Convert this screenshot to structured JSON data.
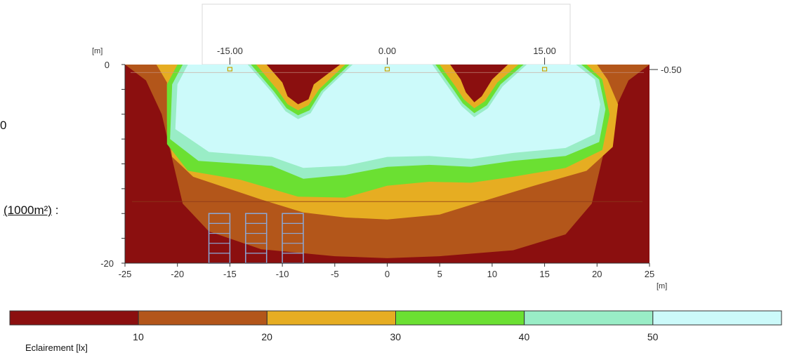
{
  "side_text": {
    "zero_fragment": "0",
    "area_fragment": "(1000m²)",
    "area_colon": " :"
  },
  "colors": {
    "band_0_10": "#8b0f0f",
    "band_10_20": "#b3561a",
    "band_20_30": "#e6ad22",
    "band_30_40": "#6be032",
    "band_40_50": "#99edc6",
    "band_50_plus": "#ccfafa",
    "fixture": "#c8a400",
    "rack": "#8aa8d8",
    "axis": "#333333"
  },
  "chart_data": {
    "type": "heatmap",
    "subtype": "isolux contour plot",
    "xlim": [
      -25,
      25
    ],
    "ylim": [
      -20,
      0
    ],
    "x_ticks": [
      "-25",
      "-20",
      "-15",
      "-10",
      "-5",
      "0",
      "5",
      "10",
      "15",
      "20",
      "25"
    ],
    "x_unit": "[m]",
    "y_unit": "[m]",
    "y_tick_labels": [
      "0",
      "-20"
    ],
    "top_ticks": [
      "-15.00",
      "0.00",
      "15.00"
    ],
    "top_tick_positions": [
      -15,
      0,
      15
    ],
    "right_label": "-0.50",
    "fixtures_x": [
      -15,
      0,
      15
    ],
    "fixture_row_y": -0.5,
    "racks_x": [
      -16,
      -12.5,
      -9
    ],
    "legend": {
      "title": "Eclairement [lx]",
      "thresholds": [
        "10",
        "20",
        "30",
        "40",
        "50"
      ],
      "bands": [
        {
          "from": 0,
          "to": 10
        },
        {
          "from": 10,
          "to": 20
        },
        {
          "from": 20,
          "to": 30
        },
        {
          "from": 30,
          "to": 40
        },
        {
          "from": 40,
          "to": 50
        },
        {
          "from": 50,
          "to": null
        }
      ]
    },
    "contour_levels": [
      {
        "level": 10,
        "outline": [
          [
            -25,
            -0.0
          ],
          [
            -23,
            -1.6
          ],
          [
            -21.5,
            -5
          ],
          [
            -20.5,
            -9.5
          ],
          [
            -19.5,
            -14
          ],
          [
            -17,
            -16.8
          ],
          [
            -12,
            -18.6
          ],
          [
            -5,
            -19.3
          ],
          [
            0,
            -19.5
          ],
          [
            5,
            -19.3
          ],
          [
            12,
            -18.7
          ],
          [
            17,
            -17.1
          ],
          [
            19.5,
            -14
          ],
          [
            20.5,
            -9.5
          ],
          [
            21.5,
            -5
          ],
          [
            23,
            -1.6
          ],
          [
            25,
            -0.0
          ]
        ]
      },
      {
        "level": 20,
        "outline": [
          [
            -22,
            0
          ],
          [
            -21,
            -1.8
          ],
          [
            -21,
            -6
          ],
          [
            -20.5,
            -9.3
          ],
          [
            -18.5,
            -11.3
          ],
          [
            -12,
            -13.6
          ],
          [
            -8,
            -14.9
          ],
          [
            -4,
            -15.4
          ],
          [
            0,
            -15.6
          ],
          [
            5,
            -15.1
          ],
          [
            9,
            -13.8
          ],
          [
            14,
            -12.2
          ],
          [
            19,
            -10.7
          ],
          [
            21.5,
            -8.3
          ],
          [
            22,
            -4
          ],
          [
            21,
            -1.5
          ],
          [
            20,
            0
          ]
        ]
      },
      {
        "level": 30,
        "outline": [
          [
            -20,
            0
          ],
          [
            -21,
            -2
          ],
          [
            -21,
            -8
          ],
          [
            -19,
            -10.7
          ],
          [
            -14,
            -11.6
          ],
          [
            -8.5,
            -13.3
          ],
          [
            -4,
            -13.4
          ],
          [
            0,
            -12.2
          ],
          [
            4,
            -11.8
          ],
          [
            8,
            -11.9
          ],
          [
            12,
            -11.3
          ],
          [
            17,
            -10.4
          ],
          [
            20.5,
            -8.6
          ],
          [
            21.2,
            -5
          ],
          [
            20.5,
            -1.5
          ],
          [
            19,
            0
          ]
        ]
      },
      {
        "level": 40,
        "outline": [
          [
            -19.5,
            0
          ],
          [
            -20.5,
            -2
          ],
          [
            -20.7,
            -7.5
          ],
          [
            -18,
            -9.7
          ],
          [
            -11,
            -10.2
          ],
          [
            -8,
            -11.5
          ],
          [
            -4,
            -11.1
          ],
          [
            0,
            -10.3
          ],
          [
            4,
            -10.1
          ],
          [
            8,
            -10.3
          ],
          [
            12,
            -9.7
          ],
          [
            17,
            -9.2
          ],
          [
            20.2,
            -7.8
          ],
          [
            20.8,
            -4.5
          ],
          [
            20.2,
            -1.5
          ],
          [
            18.5,
            0
          ]
        ]
      },
      {
        "level": 50,
        "outline": [
          [
            -19,
            0
          ],
          [
            -20,
            -2
          ],
          [
            -20.2,
            -6.5
          ],
          [
            -17,
            -8.8
          ],
          [
            -11,
            -9.3
          ],
          [
            -8,
            -10.4
          ],
          [
            -4,
            -10.2
          ],
          [
            0,
            -9.3
          ],
          [
            4,
            -9.2
          ],
          [
            8,
            -9.5
          ],
          [
            12,
            -8.9
          ],
          [
            17,
            -8.4
          ],
          [
            19.8,
            -7
          ],
          [
            20.3,
            -4
          ],
          [
            19.8,
            -1.5
          ],
          [
            18,
            0
          ]
        ]
      }
    ],
    "dark_notches": [
      {
        "level": 10,
        "outline": [
          [
            -11.5,
            0
          ],
          [
            -10,
            -1.8
          ],
          [
            -9.5,
            -3.2
          ],
          [
            -8.5,
            -4
          ],
          [
            -7.5,
            -3.5
          ],
          [
            -7,
            -2
          ],
          [
            -4.5,
            0
          ]
        ]
      },
      {
        "level": 10,
        "outline": [
          [
            6,
            0
          ],
          [
            7,
            -1.5
          ],
          [
            7.5,
            -2.8
          ],
          [
            8.3,
            -3.8
          ],
          [
            9,
            -3.2
          ],
          [
            10,
            -1.5
          ],
          [
            11.5,
            0
          ]
        ]
      }
    ],
    "notch_bands": [
      {
        "level": 20,
        "outline": [
          [
            -12.5,
            0
          ],
          [
            -10.5,
            -2.5
          ],
          [
            -9.5,
            -4
          ],
          [
            -8.5,
            -4.6
          ],
          [
            -7.5,
            -4.1
          ],
          [
            -6.5,
            -2.5
          ],
          [
            -4,
            0
          ]
        ]
      },
      {
        "level": 30,
        "outline": [
          [
            -13,
            0
          ],
          [
            -10.8,
            -2.7
          ],
          [
            -9.6,
            -4.4
          ],
          [
            -8.5,
            -5.1
          ],
          [
            -7.4,
            -4.6
          ],
          [
            -6.3,
            -2.7
          ],
          [
            -3.6,
            0
          ]
        ]
      },
      {
        "level": 40,
        "outline": [
          [
            -13.3,
            0
          ],
          [
            -11,
            -2.8
          ],
          [
            -9.7,
            -4.7
          ],
          [
            -8.5,
            -5.5
          ],
          [
            -7.3,
            -4.9
          ],
          [
            -6.1,
            -2.8
          ],
          [
            -3.3,
            0
          ]
        ]
      },
      {
        "level": 20,
        "outline": [
          [
            5,
            0
          ],
          [
            6.5,
            -2.2
          ],
          [
            7.3,
            -3.5
          ],
          [
            8.3,
            -4.4
          ],
          [
            9.3,
            -3.7
          ],
          [
            10.5,
            -1.8
          ],
          [
            12.5,
            0
          ]
        ]
      },
      {
        "level": 30,
        "outline": [
          [
            4.6,
            0
          ],
          [
            6.3,
            -2.5
          ],
          [
            7.2,
            -3.9
          ],
          [
            8.3,
            -4.9
          ],
          [
            9.5,
            -4.1
          ],
          [
            10.8,
            -2
          ],
          [
            13,
            0
          ]
        ]
      },
      {
        "level": 40,
        "outline": [
          [
            4.3,
            0
          ],
          [
            6.1,
            -2.7
          ],
          [
            7.1,
            -4.2
          ],
          [
            8.3,
            -5.3
          ],
          [
            9.6,
            -4.4
          ],
          [
            11,
            -2.2
          ],
          [
            13.3,
            0
          ]
        ]
      }
    ]
  }
}
